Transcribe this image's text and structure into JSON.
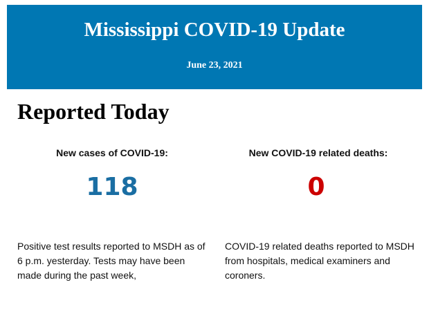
{
  "header": {
    "title": "Mississippi COVID-19 Update",
    "date": "June 23, 2021"
  },
  "section_title": "Reported Today",
  "cases": {
    "label": "New cases of COVID-19:",
    "value": "118",
    "color": "#1a6ea3",
    "description": "Positive test results reported to MSDH as of 6 p.m. yesterday. Tests may have been made during the past week,"
  },
  "deaths": {
    "label": "New COVID-19 related deaths:",
    "value": "0",
    "color": "#cc0000",
    "description": "COVID-19 related deaths reported to MSDH from hospitals, medical examiners and coroners."
  }
}
